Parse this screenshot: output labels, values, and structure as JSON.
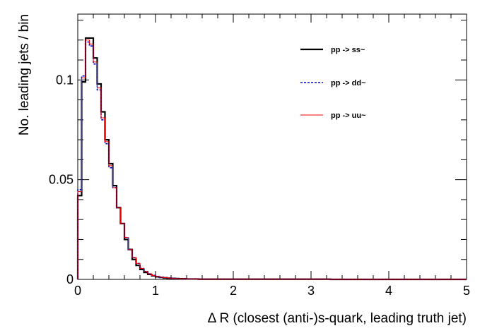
{
  "chart_data": {
    "type": "step",
    "title": "",
    "xlabel": "Δ R (closest (anti-)s-quark, leading truth jet)",
    "ylabel": "No. leading jets / bin",
    "xlim": [
      0,
      5
    ],
    "ylim": [
      0,
      0.133
    ],
    "x_ticks": [
      {
        "value": 0,
        "label": "0"
      },
      {
        "value": 1,
        "label": "1"
      },
      {
        "value": 2,
        "label": "2"
      },
      {
        "value": 3,
        "label": "3"
      },
      {
        "value": 4,
        "label": "4"
      },
      {
        "value": 5,
        "label": "5"
      }
    ],
    "y_ticks": [
      {
        "value": 0,
        "label": "0"
      },
      {
        "value": 0.05,
        "label": "0.05"
      },
      {
        "value": 0.1,
        "label": "0.1"
      }
    ],
    "bin_width": 0.05,
    "grid": false,
    "legend_position": "top-right",
    "series": [
      {
        "name": "pp -> ss~",
        "color": "#000000",
        "style": "solid",
        "values": [
          0.042,
          0.099,
          0.121,
          0.121,
          0.111,
          0.098,
          0.084,
          0.07,
          0.058,
          0.047,
          0.036,
          0.028,
          0.02,
          0.015,
          0.01,
          0.007,
          0.005,
          0.0035,
          0.0025,
          0.0018,
          0.0013,
          0.001,
          0.0008,
          0.0006,
          0.0005,
          0.0004,
          0.0003,
          0.0003,
          0.0002,
          0.0002,
          0.0002,
          0.0001,
          0.0001,
          0.0001,
          0.0001,
          0.0001,
          0.0001,
          0.0001,
          0.0001,
          0.0001,
          0.0001,
          0.0001,
          0.0001,
          0.0001,
          0.0001,
          0.0001,
          0.0001,
          0.0001,
          0.0001,
          0.0001,
          0.0001,
          0.0001,
          0.0001,
          0.0001,
          0.0001,
          0.0001,
          0.0001,
          0.0001,
          0.0001,
          0.0001,
          0.0001,
          0.0001,
          0.0001,
          0.0001,
          0.0001,
          0,
          0,
          0,
          0,
          0,
          0,
          0,
          0,
          0,
          0,
          0,
          0,
          0,
          0,
          0,
          0,
          0,
          0,
          0,
          0,
          0,
          0,
          0,
          0,
          0,
          0,
          0,
          0,
          0,
          0,
          0,
          0,
          0,
          0,
          0
        ]
      },
      {
        "name": "pp -> dd~",
        "color": "#0000cc",
        "style": "dashed",
        "values": [
          0.045,
          0.102,
          0.119,
          0.117,
          0.108,
          0.095,
          0.08,
          0.068,
          0.056,
          0.046,
          0.036,
          0.028,
          0.021,
          0.015,
          0.011,
          0.008,
          0.0055,
          0.004,
          0.0028,
          0.002,
          0.0015,
          0.0011,
          0.0009,
          0.0007,
          0.0005,
          0.0004,
          0.0003,
          0.0003,
          0.0002,
          0.0002,
          0.0002,
          0.0001,
          0.0001,
          0.0001,
          0.0001,
          0.0001,
          0.0001,
          0.0001,
          0.0001,
          0.0001,
          0.0001,
          0.0001,
          0.0001,
          0.0001,
          0.0001,
          0.0001,
          0.0001,
          0.0001,
          0.0001,
          0.0001,
          0.0001,
          0.0001,
          0.0001,
          0.0001,
          0.0001,
          0.0001,
          0.0001,
          0.0001,
          0.0001,
          0.0001,
          0.0001,
          0.0001,
          0.0001,
          0.0001,
          0.0001,
          0,
          0,
          0,
          0,
          0,
          0,
          0,
          0,
          0,
          0,
          0,
          0,
          0,
          0,
          0,
          0,
          0,
          0,
          0,
          0,
          0,
          0,
          0,
          0,
          0,
          0,
          0,
          0,
          0,
          0,
          0,
          0,
          0,
          0,
          0
        ]
      },
      {
        "name": "pp -> uu~",
        "color": "#ee0000",
        "style": "solid",
        "values": [
          0.044,
          0.101,
          0.12,
          0.118,
          0.109,
          0.096,
          0.081,
          0.069,
          0.057,
          0.046,
          0.036,
          0.028,
          0.021,
          0.015,
          0.011,
          0.008,
          0.0055,
          0.004,
          0.0028,
          0.002,
          0.0015,
          0.0011,
          0.0009,
          0.0007,
          0.0005,
          0.0004,
          0.0003,
          0.0003,
          0.0002,
          0.0002,
          0.0002,
          0.0001,
          0.0001,
          0.0001,
          0.0001,
          0.0001,
          0.0001,
          0.0001,
          0.0001,
          0.0001,
          0.0001,
          0.0001,
          0.0001,
          0.0001,
          0.0001,
          0.0001,
          0.0001,
          0.0001,
          0.0001,
          0.0001,
          0.0001,
          0.0001,
          0.0001,
          0.0001,
          0.0001,
          0.0001,
          0.0001,
          0.0001,
          0.0001,
          0.0001,
          0.0001,
          0.0001,
          0.0001,
          0.0001,
          0.0001,
          0,
          0,
          0,
          0,
          0,
          0,
          0,
          0,
          0,
          0,
          0,
          0,
          0,
          0,
          0,
          0,
          0,
          0,
          0,
          0,
          0,
          0,
          0,
          0,
          0,
          0,
          0,
          0,
          0,
          0,
          0,
          0,
          0,
          0,
          0
        ]
      }
    ]
  }
}
